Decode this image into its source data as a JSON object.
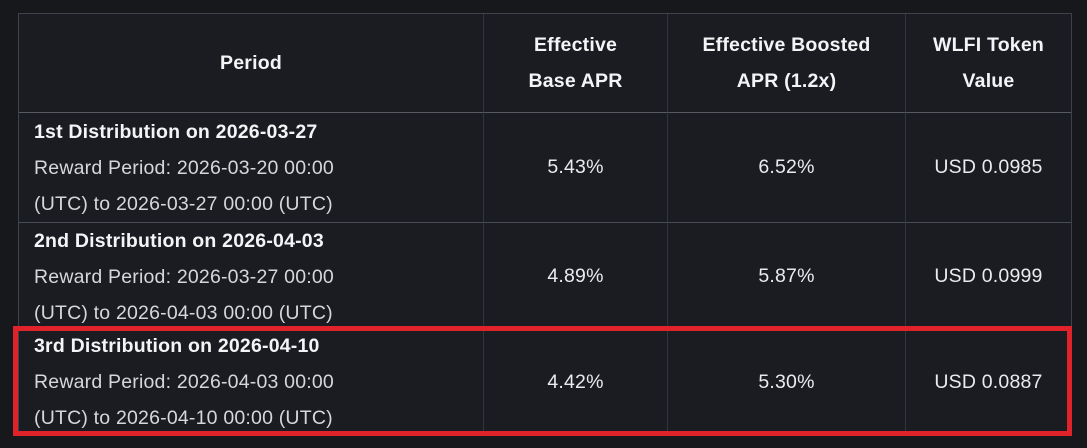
{
  "header": {
    "cells": [
      {
        "label": "Period",
        "lines": [
          "Period"
        ]
      },
      {
        "label": "Effective Base APR",
        "lines": [
          "Effective",
          "Base APR"
        ]
      },
      {
        "label": "Effective Boosted APR (1.2x)",
        "lines": [
          "Effective Boosted",
          "APR (1.2x)"
        ]
      },
      {
        "label": "WLFI Token Value",
        "lines": [
          "WLFI Token",
          "Value"
        ]
      }
    ]
  },
  "rows": [
    {
      "period_title": "1st Distribution on 2026-03-27",
      "period_detail_lines": [
        "Reward Period: 2026-03-20 00:00",
        "(UTC) to 2026-03-27 00:00 (UTC)"
      ],
      "base_apr": "5.43%",
      "boosted_apr": "6.52%",
      "token_value": "USD 0.0985"
    },
    {
      "period_title": "2nd Distribution on 2026-04-03",
      "period_detail_lines": [
        "Reward Period: 2026-03-27 00:00",
        "(UTC) to 2026-04-03 00:00 (UTC)"
      ],
      "base_apr": "4.89%",
      "boosted_apr": "5.87%",
      "token_value": "USD 0.0999"
    },
    {
      "period_title": "3rd Distribution on 2026-04-10",
      "period_detail_lines": [
        "Reward Period: 2026-04-03 00:00",
        "(UTC) to 2026-04-10 00:00 (UTC)"
      ],
      "base_apr": "4.42%",
      "boosted_apr": "5.30%",
      "token_value": "USD 0.0887"
    }
  ],
  "highlight": {
    "row_index": 2,
    "highlighted_row_title": "3rd Distribution on 2026-04-10"
  },
  "colors": {
    "background": "#17181c",
    "cell_background": "#1b1c22",
    "border_vertical": "#31353d",
    "border_horizontal": "#474c55",
    "text_primary": "#f3f4f6",
    "text_secondary": "#d5d7db",
    "highlight_red": "#e0222a"
  }
}
